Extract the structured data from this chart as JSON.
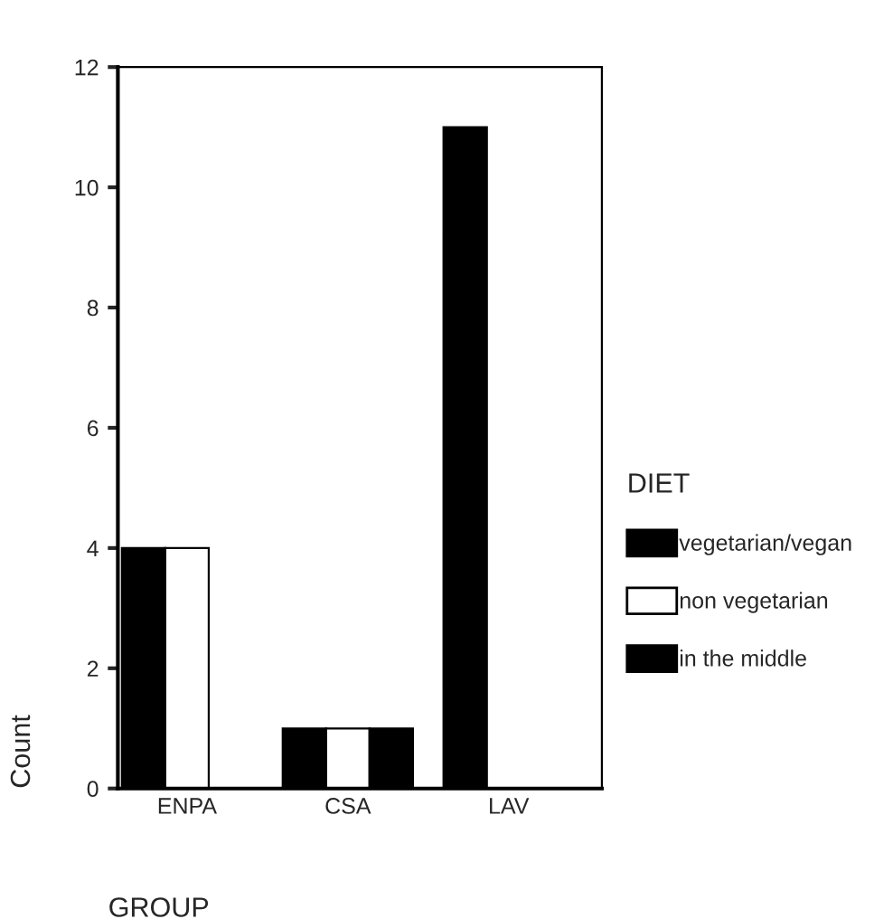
{
  "chart_data": {
    "type": "bar",
    "xlabel": "GROUP",
    "ylabel": "Count",
    "legend_title": "DIET",
    "categories": [
      "ENPA",
      "CSA",
      "LAV"
    ],
    "series": [
      {
        "name": "vegetarian/vegan",
        "color": "#000000",
        "values": [
          4,
          1,
          11
        ]
      },
      {
        "name": "non vegetarian",
        "color": "#ffffff",
        "values": [
          4,
          1,
          null
        ]
      },
      {
        "name": "in the middle",
        "color": "#000000",
        "values": [
          null,
          1,
          null
        ]
      }
    ],
    "ylim": [
      0,
      12
    ],
    "yticks": [
      0,
      2,
      4,
      6,
      8,
      10,
      12
    ],
    "grid": false,
    "legend": "right"
  }
}
